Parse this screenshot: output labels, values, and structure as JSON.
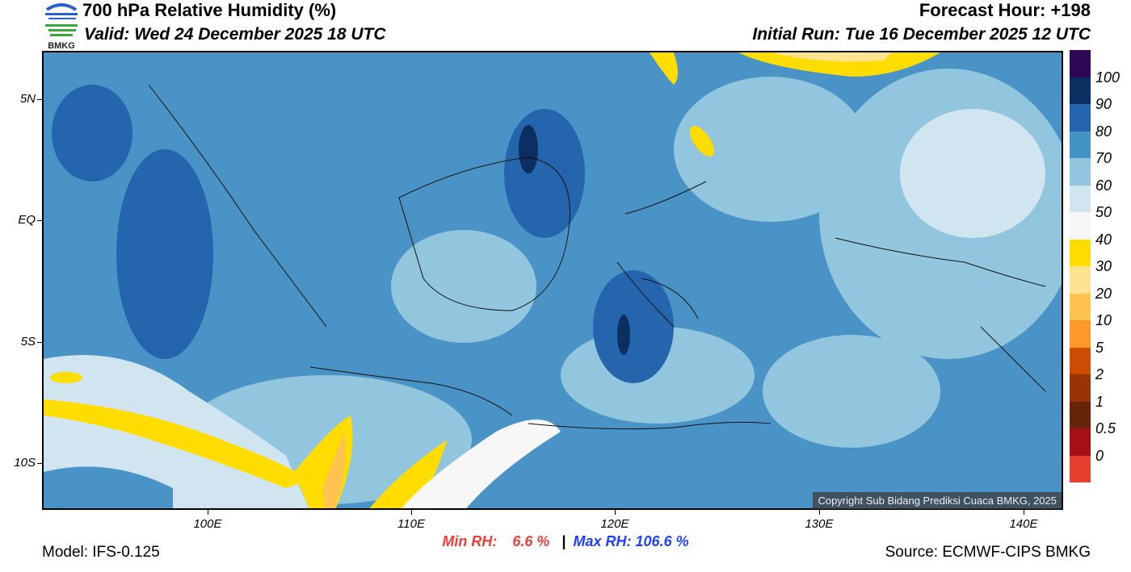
{
  "header": {
    "title": "700 hPa Relative Humidity (%)",
    "valid": "Valid: Wed 24 December 2025 18 UTC",
    "forecast_hour": "Forecast Hour: +198",
    "initial_run": "Initial Run: Tue 16 December 2025 12 UTC",
    "logo_text": "BMKG"
  },
  "axes": {
    "lat_labels": [
      "5N",
      "EQ",
      "5S",
      "10S"
    ],
    "lon_labels": [
      "100E",
      "110E",
      "120E",
      "130E",
      "140E"
    ]
  },
  "colorbar": {
    "colors": [
      "#2e0854",
      "#0b2f60",
      "#2565ad",
      "#4393c3",
      "#92c5de",
      "#d1e5f0",
      "#f7f7f7",
      "#ffdd00",
      "#fee391",
      "#fec44f",
      "#fe9929",
      "#cc4c02",
      "#993404",
      "#662506",
      "#a50f15",
      "#e8402f"
    ],
    "labels": [
      "100",
      "90",
      "80",
      "70",
      "60",
      "50",
      "40",
      "30",
      "20",
      "10",
      "5",
      "2",
      "1",
      "0.5",
      "0"
    ]
  },
  "stats": {
    "min_label": "Min RH:",
    "min_value": "6.6 %",
    "separator": "|",
    "max_label": "Max RH:",
    "max_value": "106.6 %",
    "min_color": "#f03c3c",
    "max_color": "#2040ff"
  },
  "footer": {
    "model": "Model: IFS-0.125",
    "source": "Source: ECMWF-CIPS BMKG",
    "copyright": "Copyright Sub Bidang Prediksi Cuaca BMKG, 2025"
  }
}
